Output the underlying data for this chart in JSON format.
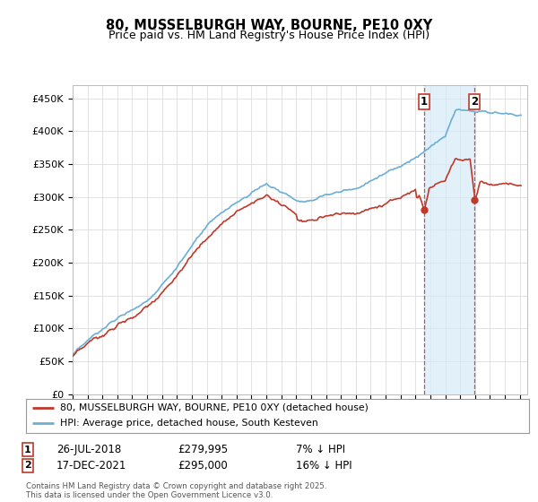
{
  "title_line1": "80, MUSSELBURGH WAY, BOURNE, PE10 0XY",
  "title_line2": "Price paid vs. HM Land Registry's House Price Index (HPI)",
  "ylabel_ticks": [
    "£0",
    "£50K",
    "£100K",
    "£150K",
    "£200K",
    "£250K",
    "£300K",
    "£350K",
    "£400K",
    "£450K"
  ],
  "ytick_values": [
    0,
    50000,
    100000,
    150000,
    200000,
    250000,
    300000,
    350000,
    400000,
    450000
  ],
  "ylim": [
    0,
    470000
  ],
  "xlim_start": 1995.0,
  "xlim_end": 2025.5,
  "hpi_color": "#6baed6",
  "price_color": "#c0392b",
  "shade_color": "#d6eaf8",
  "marker1_x": 2018.57,
  "marker1_y": 279995,
  "marker2_x": 2021.96,
  "marker2_y": 295000,
  "legend_line1": "80, MUSSELBURGH WAY, BOURNE, PE10 0XY (detached house)",
  "legend_line2": "HPI: Average price, detached house, South Kesteven",
  "annotation1_num": "1",
  "annotation1_date": "26-JUL-2018",
  "annotation1_price": "£279,995",
  "annotation1_hpi": "7% ↓ HPI",
  "annotation2_num": "2",
  "annotation2_date": "17-DEC-2021",
  "annotation2_price": "£295,000",
  "annotation2_hpi": "16% ↓ HPI",
  "footer": "Contains HM Land Registry data © Crown copyright and database right 2025.\nThis data is licensed under the Open Government Licence v3.0.",
  "background_color": "#ffffff",
  "grid_color": "#dddddd"
}
